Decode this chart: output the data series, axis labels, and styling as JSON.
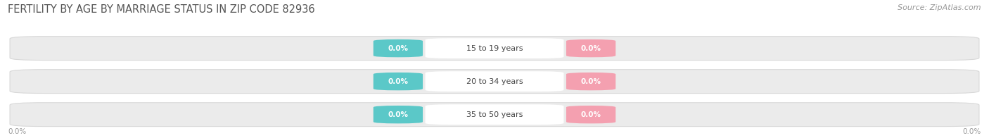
{
  "title": "FERTILITY BY AGE BY MARRIAGE STATUS IN ZIP CODE 82936",
  "source": "Source: ZipAtlas.com",
  "categories": [
    "15 to 19 years",
    "20 to 34 years",
    "35 to 50 years"
  ],
  "married_values": [
    0.0,
    0.0,
    0.0
  ],
  "unmarried_values": [
    0.0,
    0.0,
    0.0
  ],
  "married_color": "#5bc8c8",
  "unmarried_color": "#f4a0b0",
  "bar_bg_color": "#ebebeb",
  "bar_border_color": "#d8d8d8",
  "center_box_color": "#ffffff",
  "title_color": "#555555",
  "axis_label_color": "#999999",
  "title_fontsize": 10.5,
  "source_fontsize": 8,
  "value_fontsize": 7.5,
  "category_fontsize": 8,
  "legend_fontsize": 9,
  "background_color": "#ffffff",
  "left_label": "0.0%",
  "right_label": "0.0%"
}
